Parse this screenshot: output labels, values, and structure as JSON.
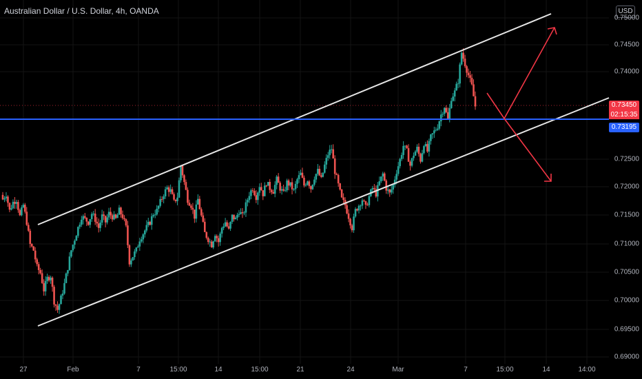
{
  "header": {
    "title": "Australian Dollar / U.S. Dollar, 4h, OANDA",
    "currency_label": "USD"
  },
  "price_axis": {
    "labels": [
      "0.75000",
      "0.74500",
      "0.74000",
      "0.72500",
      "0.72000",
      "0.71500",
      "0.71000",
      "0.70500",
      "0.70000",
      "0.69500",
      "0.69000"
    ],
    "current_price": "0.73450",
    "countdown": "02:15:35",
    "level_price": "0.73195"
  },
  "time_axis": {
    "labels": [
      "27",
      "Feb",
      "7",
      "15:00",
      "14",
      "15:00",
      "21",
      "24",
      "Mar",
      "7",
      "15:00",
      "14",
      "14:00"
    ]
  },
  "colors": {
    "up": "#26a69a",
    "down": "#ef5350",
    "level_line": "#2962ff",
    "channel": "#e0e0e0",
    "projection": "#f23645"
  },
  "chart_data": {
    "type": "candlestick",
    "instrument": "Australian Dollar / U.S. Dollar",
    "timeframe": "4h",
    "source": "OANDA",
    "ylim": [
      0.69,
      0.75
    ],
    "current_price": 0.7345,
    "horizontal_level": 0.73195,
    "path": [
      [
        0.718,
        0.719,
        0.716,
        0.7175,
        0.718,
        0.715,
        0.717,
        0.714,
        0.71,
        0.709,
        0.706,
        0.705,
        0.702,
        0.704,
        0.7045,
        0.7,
        0.6985,
        0.7005,
        0.703,
        0.706
      ],
      [
        0.709,
        0.711,
        0.713,
        0.715,
        0.7145,
        0.714,
        0.7155,
        0.7145,
        0.713,
        0.715,
        0.714,
        0.7155,
        0.715,
        0.7145,
        0.716,
        0.715,
        0.713,
        0.707,
        0.708,
        0.709
      ],
      [
        0.711,
        0.712,
        0.713,
        0.714,
        0.7155,
        0.716,
        0.7175,
        0.719,
        0.72,
        0.7195,
        0.7175,
        0.7185,
        0.724,
        0.721,
        0.718,
        0.717,
        0.715,
        0.718,
        0.715,
        0.712
      ],
      [
        0.711,
        0.71,
        0.712,
        0.7105,
        0.713,
        0.714,
        0.7125,
        0.715,
        0.7145,
        0.716,
        0.715,
        0.717,
        0.719,
        0.72,
        0.7185,
        0.7205,
        0.719,
        0.721,
        0.72,
        0.7195
      ],
      [
        0.7215,
        0.72,
        0.719,
        0.721,
        0.7205,
        0.7195,
        0.7215,
        0.7225,
        0.7205,
        0.7215,
        0.72,
        0.722,
        0.723,
        0.7215,
        0.724,
        0.726,
        0.727,
        0.723,
        0.7205,
        0.718
      ],
      [
        0.717,
        0.715,
        0.713,
        0.716,
        0.717,
        0.718,
        0.7165,
        0.7185,
        0.72,
        0.719,
        0.721,
        0.7225,
        0.72,
        0.719,
        0.7205,
        0.723,
        0.725,
        0.7275,
        0.7265,
        0.724
      ],
      [
        0.726,
        0.727,
        0.725,
        0.728,
        0.7265,
        0.729,
        0.73,
        0.731,
        0.733,
        0.7345,
        0.732,
        0.736,
        0.737,
        0.739,
        0.744,
        0.742,
        0.74,
        0.738,
        0.7345
      ]
    ]
  }
}
